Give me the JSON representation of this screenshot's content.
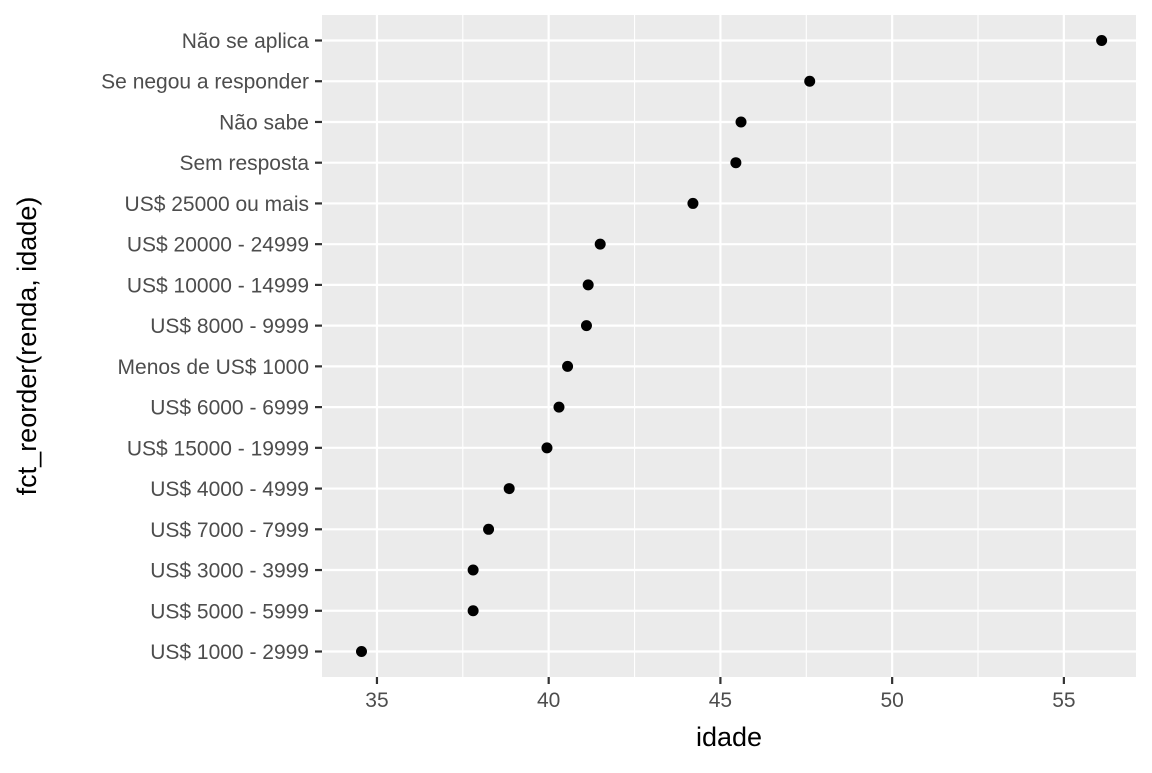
{
  "chart_data": {
    "type": "scatter",
    "title": "",
    "xlabel": "idade",
    "ylabel": "fct_reorder(renda, idade)",
    "xlim": [
      33.4,
      57.1
    ],
    "x_ticks": [
      35,
      40,
      45,
      50,
      55
    ],
    "grid": true,
    "colors": {
      "panel_background": "#EBEBEB",
      "grid": "#FFFFFF",
      "point": "#000000",
      "tick_text": "#4D4D4D",
      "axis_title": "#000000"
    },
    "categories": [
      "Não se aplica",
      "Se negou a responder",
      "Não sabe",
      "Sem resposta",
      "US$ 25000 ou mais",
      "US$ 20000 - 24999",
      "US$ 10000 - 14999",
      "US$ 8000 - 9999",
      "Menos de US$ 1000",
      "US$ 6000 - 6999",
      "US$ 15000 - 19999",
      "US$ 4000 - 4999",
      "US$ 7000 - 7999",
      "US$ 3000 - 3999",
      "US$ 5000 - 5999",
      "US$ 1000 - 2999"
    ],
    "values": [
      56.1,
      47.6,
      45.6,
      45.45,
      44.2,
      41.5,
      41.15,
      41.1,
      40.55,
      40.3,
      39.95,
      38.85,
      38.25,
      37.8,
      37.8,
      34.55
    ]
  }
}
